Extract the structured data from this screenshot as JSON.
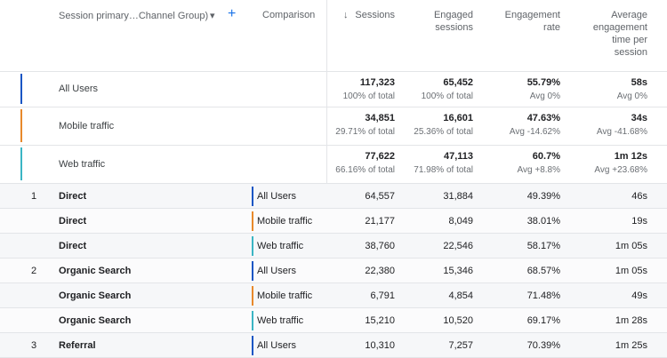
{
  "header": {
    "dimension": "Session primary…Channel Group)",
    "comparison": "Comparison",
    "columns": [
      "Sessions",
      "Engaged sessions",
      "Engagement rate",
      "Average engagement time per session"
    ]
  },
  "summary": [
    {
      "label": "All Users",
      "color": "#1a56c4",
      "values": [
        "117,323",
        "65,452",
        "55.79%",
        "58s"
      ],
      "subs": [
        "100% of total",
        "100% of total",
        "Avg 0%",
        "Avg 0%"
      ]
    },
    {
      "label": "Mobile traffic",
      "color": "#e8892b",
      "values": [
        "34,851",
        "16,601",
        "47.63%",
        "34s"
      ],
      "subs": [
        "29.71% of total",
        "25.36% of total",
        "Avg -14.62%",
        "Avg -41.68%"
      ]
    },
    {
      "label": "Web traffic",
      "color": "#3bb5c4",
      "values": [
        "77,622",
        "47,113",
        "60.7%",
        "1m 12s"
      ],
      "subs": [
        "66.16% of total",
        "71.98% of total",
        "Avg +8.8%",
        "Avg +23.68%"
      ]
    }
  ],
  "rows": [
    {
      "index": "1",
      "channel": "Direct",
      "segment": "All Users",
      "values": [
        "64,557",
        "31,884",
        "49.39%",
        "46s"
      ]
    },
    {
      "channel": "Direct",
      "segment": "Mobile traffic",
      "values": [
        "21,177",
        "8,049",
        "38.01%",
        "19s"
      ]
    },
    {
      "channel": "Direct",
      "segment": "Web traffic",
      "values": [
        "38,760",
        "22,546",
        "58.17%",
        "1m 05s"
      ]
    },
    {
      "index": "2",
      "channel": "Organic Search",
      "segment": "All Users",
      "values": [
        "22,380",
        "15,346",
        "68.57%",
        "1m 05s"
      ]
    },
    {
      "channel": "Organic Search",
      "segment": "Mobile traffic",
      "values": [
        "6,791",
        "4,854",
        "71.48%",
        "49s"
      ]
    },
    {
      "channel": "Organic Search",
      "segment": "Web traffic",
      "values": [
        "15,210",
        "10,520",
        "69.17%",
        "1m 28s"
      ]
    },
    {
      "index": "3",
      "channel": "Referral",
      "segment": "All Users",
      "values": [
        "10,310",
        "7,257",
        "70.39%",
        "1m 25s"
      ]
    }
  ]
}
